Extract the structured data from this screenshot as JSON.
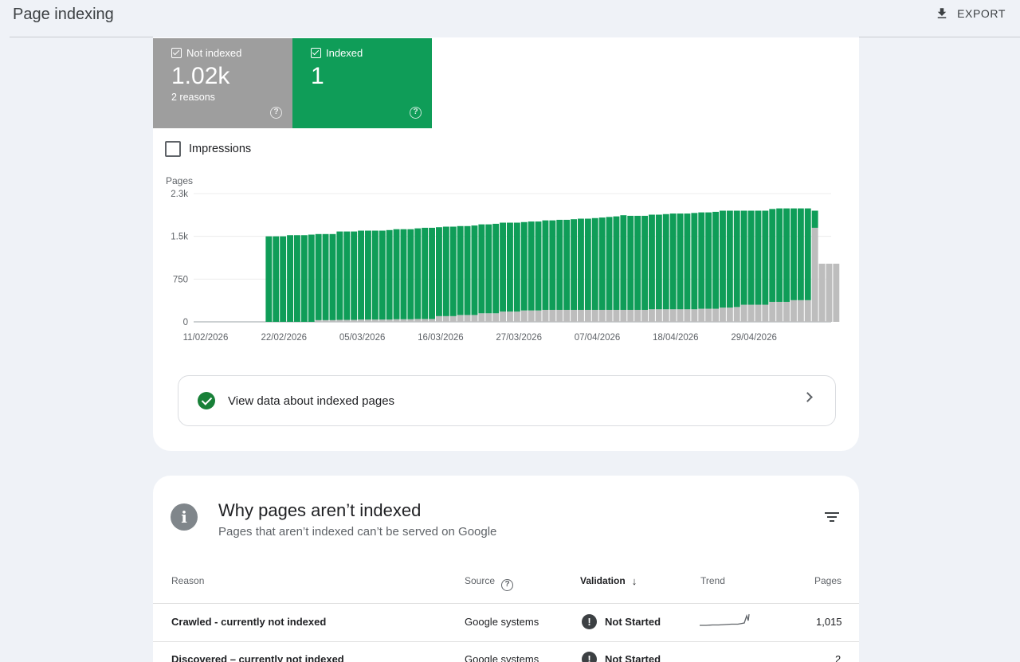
{
  "header": {
    "title": "Page indexing",
    "export_label": "EXPORT"
  },
  "tiles": [
    {
      "label": "Not indexed",
      "value": "1.02k",
      "sub": "2 reasons",
      "color": "#9e9e9e"
    },
    {
      "label": "Indexed",
      "value": "1",
      "sub": "",
      "color": "#0f9d58"
    }
  ],
  "impressions_label": "Impressions",
  "chart_data": {
    "type": "bar",
    "stacked": true,
    "ylabel": "Pages",
    "yticks": [
      "0",
      "750",
      "1.5k",
      "2.3k"
    ],
    "ylim": [
      0,
      2250
    ],
    "grid": true,
    "xtick_labels": [
      "11/02/2026",
      "22/02/2026",
      "05/03/2026",
      "16/03/2026",
      "27/03/2026",
      "07/04/2026",
      "18/04/2026",
      "29/04/2026"
    ],
    "series": [
      {
        "color": "#bdbdbd",
        "values": [
          0,
          0,
          0,
          0,
          0,
          0,
          0,
          0,
          0,
          0,
          0,
          0,
          0,
          30,
          30,
          30,
          35,
          35,
          35,
          40,
          40,
          40,
          40,
          40,
          45,
          45,
          45,
          50,
          50,
          50,
          100,
          100,
          100,
          120,
          120,
          120,
          150,
          150,
          150,
          180,
          180,
          180,
          200,
          200,
          200,
          210,
          210,
          210,
          210,
          210,
          210,
          210,
          210,
          210,
          210,
          210,
          210,
          210,
          210,
          210,
          220,
          220,
          220,
          220,
          220,
          220,
          220,
          230,
          230,
          230,
          250,
          250,
          260,
          300,
          300,
          300,
          300,
          350,
          350,
          350,
          380,
          380,
          380,
          1650,
          1020,
          1020,
          1020
        ]
      },
      {
        "color": "#0f9d58",
        "values": [
          0,
          0,
          0,
          0,
          0,
          0,
          1500,
          1500,
          1500,
          1520,
          1520,
          1520,
          1530,
          1510,
          1510,
          1510,
          1550,
          1550,
          1550,
          1560,
          1560,
          1560,
          1560,
          1570,
          1580,
          1580,
          1580,
          1590,
          1600,
          1600,
          1560,
          1570,
          1570,
          1560,
          1560,
          1570,
          1560,
          1560,
          1570,
          1560,
          1560,
          1560,
          1550,
          1560,
          1560,
          1570,
          1570,
          1580,
          1580,
          1590,
          1600,
          1600,
          1610,
          1620,
          1630,
          1640,
          1660,
          1650,
          1650,
          1650,
          1660,
          1660,
          1670,
          1680,
          1680,
          1680,
          1690,
          1690,
          1690,
          1700,
          1700,
          1700,
          1690,
          1650,
          1650,
          1650,
          1650,
          1630,
          1640,
          1640,
          1610,
          1610,
          1610,
          300,
          0,
          0,
          0
        ]
      }
    ]
  },
  "view_data_label": "View data about indexed pages",
  "why": {
    "title": "Why pages aren’t indexed",
    "subtitle": "Pages that aren’t indexed can’t be served on Google"
  },
  "table": {
    "headers": {
      "reason": "Reason",
      "source": "Source",
      "validation": "Validation",
      "trend": "Trend",
      "pages": "Pages"
    },
    "rows": [
      {
        "reason": "Crawled - currently not indexed",
        "source": "Google systems",
        "validation": "Not Started",
        "pages": "1,015"
      },
      {
        "reason": "Discovered – currently not indexed",
        "source": "Google systems",
        "validation": "Not Started",
        "pages": "2"
      }
    ]
  }
}
